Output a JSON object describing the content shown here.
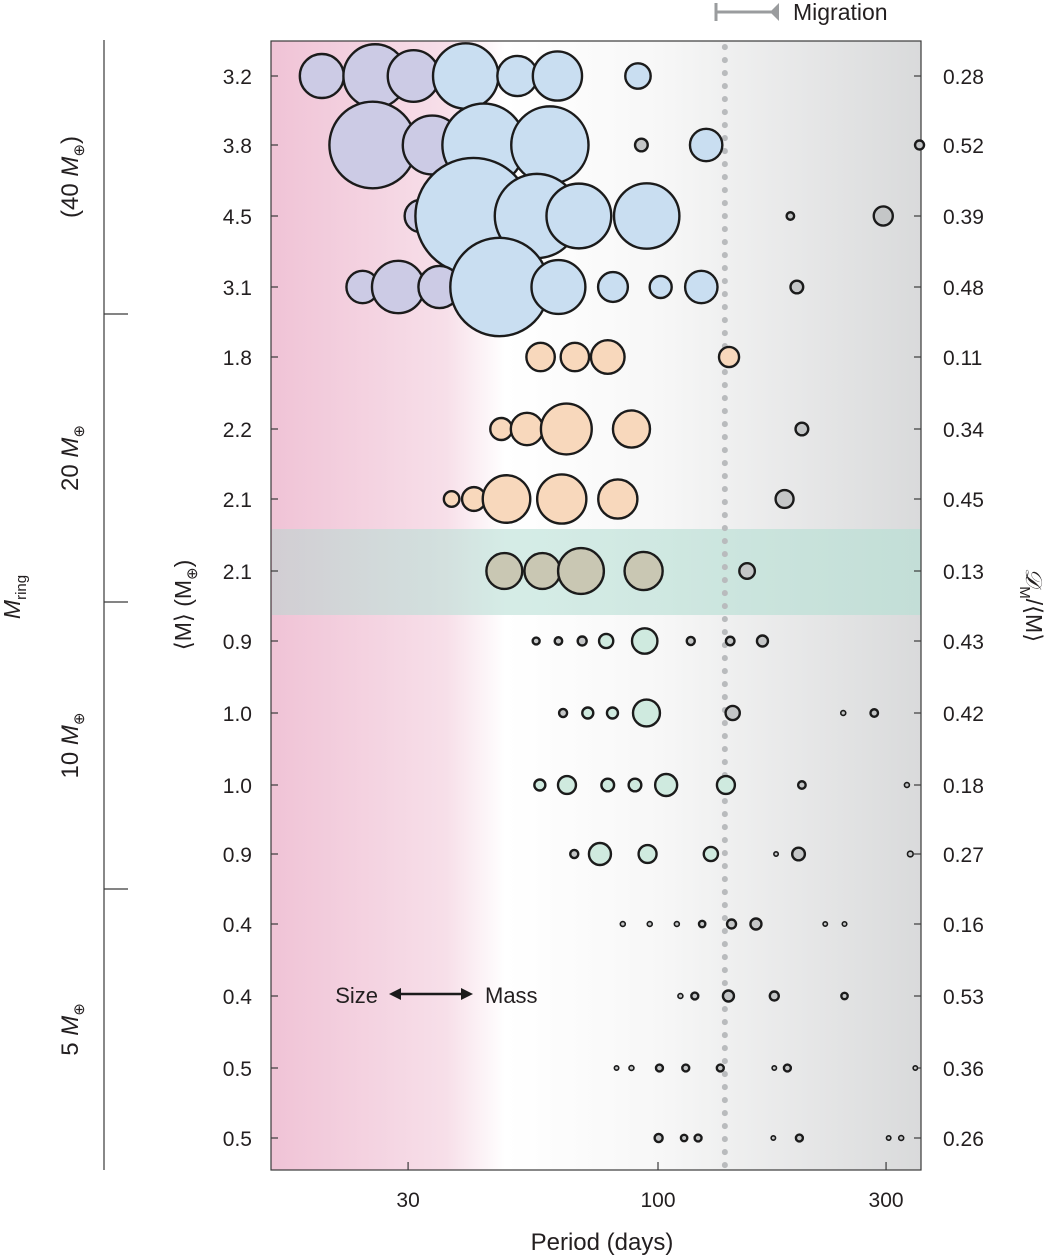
{
  "chart_data": {
    "type": "scatter",
    "title": "",
    "xlabel": "Period (days)",
    "x_scale": "log",
    "xlim": [
      15.5,
      355
    ],
    "xticks": [
      30,
      100,
      300
    ],
    "xtick_labels": [
      "30",
      "100",
      "300"
    ],
    "left_axis_label_main": "⟨M⟩ (M",
    "left_axis_label_sub": "⊕",
    "left_axis_label_end": ")",
    "right_axis_label_main": "𝒟",
    "right_axis_label_sub": "M",
    "right_axis_label_end": "/⟨M⟩",
    "far_left_label_main": "M",
    "far_left_label_sub": "ring",
    "migration_label": "Migration",
    "migration_period": 138,
    "size_mass_label_left": "Size",
    "size_mass_label_right": "Mass",
    "groups": [
      {
        "label_prefix": "(40 M",
        "label_suffix": ")",
        "systems": [
          0,
          3
        ]
      },
      {
        "label_prefix": "20 M",
        "label_suffix": "",
        "systems": [
          4,
          7
        ]
      },
      {
        "label_prefix": "10 M",
        "label_suffix": "",
        "systems": [
          8,
          11
        ]
      },
      {
        "label_prefix": "5 M",
        "label_suffix": "",
        "systems": [
          12,
          15
        ]
      }
    ],
    "earth_symbol": "⊕",
    "highlighted_system": 7,
    "colors": {
      "pink": "#f1c6d8",
      "lavender": "#cccbe5",
      "blue": "#c9def1",
      "peach": "#f8d8bc",
      "sage": "#c9c7b3",
      "mint": "#cfeadf",
      "gray": "#c4c6c7",
      "highlight_band": "#c7e4dc",
      "migration_line": "#b9bbbd",
      "outline": "#1b1b1b"
    },
    "systems": [
      {
        "mean_mass": "3.2",
        "dispersion": "0.28",
        "planets": [
          {
            "period": 19.8,
            "mass": 2.4,
            "color": "lavender"
          },
          {
            "period": 25.6,
            "mass": 5.0,
            "color": "lavender"
          },
          {
            "period": 30.8,
            "mass": 3.3,
            "color": "lavender"
          },
          {
            "period": 39.6,
            "mass": 5.3,
            "color": "blue"
          },
          {
            "period": 50.8,
            "mass": 2.0,
            "color": "blue"
          },
          {
            "period": 61.6,
            "mass": 3.0,
            "color": "blue"
          },
          {
            "period": 90.8,
            "mass": 0.8,
            "color": "blue"
          }
        ]
      },
      {
        "mean_mass": "3.8",
        "dispersion": "0.52",
        "planets": [
          {
            "period": 25.3,
            "mass": 9.3,
            "color": "lavender"
          },
          {
            "period": 33.7,
            "mass": 4.3,
            "color": "lavender"
          },
          {
            "period": 43.2,
            "mass": 8.5,
            "color": "blue"
          },
          {
            "period": 59.4,
            "mass": 7.4,
            "color": "blue"
          },
          {
            "period": 92.3,
            "mass": 0.2,
            "color": "gray"
          },
          {
            "period": 126.1,
            "mass": 1.3,
            "color": "blue"
          },
          {
            "period": 352.5,
            "mass": 0.1,
            "color": "gray"
          }
        ]
      },
      {
        "mean_mass": "4.5",
        "dispersion": "0.39",
        "planets": [
          {
            "period": 31.9,
            "mass": 1.3,
            "color": "lavender"
          },
          {
            "period": 41.1,
            "mass": 16.7,
            "color": "blue"
          },
          {
            "period": 55.8,
            "mass": 8.8,
            "color": "blue"
          },
          {
            "period": 68.3,
            "mass": 5.2,
            "color": "blue"
          },
          {
            "period": 94.7,
            "mass": 5.3,
            "color": "blue"
          },
          {
            "period": 189.2,
            "mass": 0.07,
            "color": "gray"
          },
          {
            "period": 296.0,
            "mass": 0.45,
            "color": "gray"
          }
        ]
      },
      {
        "mean_mass": "3.1",
        "dispersion": "0.48",
        "planets": [
          {
            "period": 24.1,
            "mass": 1.3,
            "color": "lavender"
          },
          {
            "period": 28.6,
            "mass": 3.4,
            "color": "lavender"
          },
          {
            "period": 34.9,
            "mass": 2.2,
            "color": "lavender"
          },
          {
            "period": 46.6,
            "mass": 12.0,
            "color": "blue"
          },
          {
            "period": 61.9,
            "mass": 3.6,
            "color": "blue"
          },
          {
            "period": 80.5,
            "mass": 1.1,
            "color": "blue"
          },
          {
            "period": 101.3,
            "mass": 0.6,
            "color": "blue"
          },
          {
            "period": 123.2,
            "mass": 1.3,
            "color": "blue"
          },
          {
            "period": 195.2,
            "mass": 0.2,
            "color": "gray"
          }
        ]
      },
      {
        "mean_mass": "1.8",
        "dispersion": "0.11",
        "planets": [
          {
            "period": 56.8,
            "mass": 1.0,
            "color": "peach"
          },
          {
            "period": 67.0,
            "mass": 1.0,
            "color": "peach"
          },
          {
            "period": 78.5,
            "mass": 1.4,
            "color": "peach"
          },
          {
            "period": 140.8,
            "mass": 0.5,
            "color": "peach"
          }
        ]
      },
      {
        "mean_mass": "2.2",
        "dispersion": "0.34",
        "planets": [
          {
            "period": 47.0,
            "mass": 0.6,
            "color": "peach"
          },
          {
            "period": 53.2,
            "mass": 1.3,
            "color": "peach"
          },
          {
            "period": 64.3,
            "mass": 3.2,
            "color": "peach"
          },
          {
            "period": 88.0,
            "mass": 1.7,
            "color": "peach"
          },
          {
            "period": 200.0,
            "mass": 0.2,
            "color": "gray"
          }
        ]
      },
      {
        "mean_mass": "2.1",
        "dispersion": "0.45",
        "planets": [
          {
            "period": 37.0,
            "mass": 0.3,
            "color": "peach"
          },
          {
            "period": 41.2,
            "mass": 0.7,
            "color": "peach"
          },
          {
            "period": 48.2,
            "mass": 2.8,
            "color": "peach"
          },
          {
            "period": 62.9,
            "mass": 3.0,
            "color": "peach"
          },
          {
            "period": 82.4,
            "mass": 1.9,
            "color": "peach"
          },
          {
            "period": 184.0,
            "mass": 0.4,
            "color": "gray"
          }
        ]
      },
      {
        "mean_mass": "2.1",
        "dispersion": "0.13",
        "planets": [
          {
            "period": 47.7,
            "mass": 1.6,
            "color": "sage"
          },
          {
            "period": 57.3,
            "mass": 1.6,
            "color": "sage"
          },
          {
            "period": 69.0,
            "mass": 2.6,
            "color": "sage"
          },
          {
            "period": 93.3,
            "mass": 1.8,
            "color": "sage"
          },
          {
            "period": 153.6,
            "mass": 0.3,
            "color": "gray"
          }
        ]
      },
      {
        "mean_mass": "0.9",
        "dispersion": "0.43",
        "planets": [
          {
            "period": 55.6,
            "mass": 0.06,
            "color": "gray"
          },
          {
            "period": 61.9,
            "mass": 0.07,
            "color": "gray"
          },
          {
            "period": 69.4,
            "mass": 0.1,
            "color": "gray"
          },
          {
            "period": 77.9,
            "mass": 0.25,
            "color": "mint"
          },
          {
            "period": 93.8,
            "mass": 0.8,
            "color": "mint"
          },
          {
            "period": 117.1,
            "mass": 0.08,
            "color": "gray"
          },
          {
            "period": 141.6,
            "mass": 0.09,
            "color": "gray"
          },
          {
            "period": 165.4,
            "mass": 0.15,
            "color": "gray"
          }
        ]
      },
      {
        "mean_mass": "1.0",
        "dispersion": "0.42",
        "planets": [
          {
            "period": 63.3,
            "mass": 0.08,
            "color": "gray"
          },
          {
            "period": 71.3,
            "mass": 0.15,
            "color": "mint"
          },
          {
            "period": 80.3,
            "mass": 0.15,
            "color": "mint"
          },
          {
            "period": 94.6,
            "mass": 0.9,
            "color": "mint"
          },
          {
            "period": 143.3,
            "mass": 0.25,
            "color": "gray"
          },
          {
            "period": 244.1,
            "mass": 0.03,
            "color": "gray"
          },
          {
            "period": 283.4,
            "mass": 0.07,
            "color": "gray"
          }
        ]
      },
      {
        "mean_mass": "1.0",
        "dispersion": "0.18",
        "planets": [
          {
            "period": 56.6,
            "mass": 0.15,
            "color": "mint"
          },
          {
            "period": 64.5,
            "mass": 0.4,
            "color": "mint"
          },
          {
            "period": 78.5,
            "mass": 0.2,
            "color": "mint"
          },
          {
            "period": 89.5,
            "mass": 0.2,
            "color": "mint"
          },
          {
            "period": 104.0,
            "mass": 0.6,
            "color": "mint"
          },
          {
            "period": 138.7,
            "mass": 0.4,
            "color": "mint"
          },
          {
            "period": 200.0,
            "mass": 0.07,
            "color": "gray"
          },
          {
            "period": 331.7,
            "mass": 0.03,
            "color": "gray"
          }
        ]
      },
      {
        "mean_mass": "0.9",
        "dispersion": "0.27",
        "planets": [
          {
            "period": 66.8,
            "mass": 0.08,
            "color": "gray"
          },
          {
            "period": 75.6,
            "mass": 0.6,
            "color": "mint"
          },
          {
            "period": 95.1,
            "mass": 0.4,
            "color": "mint"
          },
          {
            "period": 129.0,
            "mass": 0.25,
            "color": "mint"
          },
          {
            "period": 176.6,
            "mass": 0.02,
            "color": "gray"
          },
          {
            "period": 196.8,
            "mass": 0.2,
            "color": "gray"
          },
          {
            "period": 337.2,
            "mass": 0.04,
            "color": "gray"
          }
        ]
      },
      {
        "mean_mass": "0.4",
        "dispersion": "0.16",
        "planets": [
          {
            "period": 84.4,
            "mass": 0.03,
            "color": "gray"
          },
          {
            "period": 96.1,
            "mass": 0.03,
            "color": "gray"
          },
          {
            "period": 109.5,
            "mass": 0.03,
            "color": "gray"
          },
          {
            "period": 123.7,
            "mass": 0.05,
            "color": "gray"
          },
          {
            "period": 142.5,
            "mass": 0.1,
            "color": "gray"
          },
          {
            "period": 160.3,
            "mass": 0.15,
            "color": "gray"
          },
          {
            "period": 223.8,
            "mass": 0.015,
            "color": "gray"
          },
          {
            "period": 245.6,
            "mass": 0.025,
            "color": "gray"
          }
        ]
      },
      {
        "mean_mass": "0.4",
        "dispersion": "0.53",
        "planets": [
          {
            "period": 111.4,
            "mass": 0.03,
            "color": "gray"
          },
          {
            "period": 119.4,
            "mass": 0.06,
            "color": "gray"
          },
          {
            "period": 140.4,
            "mass": 0.15,
            "color": "gray"
          },
          {
            "period": 175.1,
            "mass": 0.1,
            "color": "gray"
          },
          {
            "period": 245.6,
            "mass": 0.05,
            "color": "gray"
          }
        ]
      },
      {
        "mean_mass": "0.5",
        "dispersion": "0.36",
        "planets": [
          {
            "period": 81.9,
            "mass": 0.015,
            "color": "gray"
          },
          {
            "period": 88.0,
            "mass": 0.03,
            "color": "gray"
          },
          {
            "period": 100.7,
            "mass": 0.06,
            "color": "gray"
          },
          {
            "period": 114.3,
            "mass": 0.06,
            "color": "gray"
          },
          {
            "period": 135.0,
            "mass": 0.06,
            "color": "gray"
          },
          {
            "period": 175.1,
            "mass": 0.015,
            "color": "gray"
          },
          {
            "period": 186.5,
            "mass": 0.06,
            "color": "gray"
          },
          {
            "period": 345.4,
            "mass": 0.01,
            "color": "gray"
          }
        ]
      },
      {
        "mean_mass": "0.5",
        "dispersion": "0.26",
        "planets": [
          {
            "period": 100.3,
            "mass": 0.08,
            "color": "gray"
          },
          {
            "period": 113.4,
            "mass": 0.05,
            "color": "gray"
          },
          {
            "period": 121.3,
            "mass": 0.06,
            "color": "gray"
          },
          {
            "period": 174.3,
            "mass": 0.01,
            "color": "gray"
          },
          {
            "period": 197.6,
            "mass": 0.06,
            "color": "gray"
          },
          {
            "period": 303.8,
            "mass": 0.01,
            "color": "gray"
          },
          {
            "period": 322.7,
            "mass": 0.03,
            "color": "gray"
          }
        ]
      }
    ]
  }
}
